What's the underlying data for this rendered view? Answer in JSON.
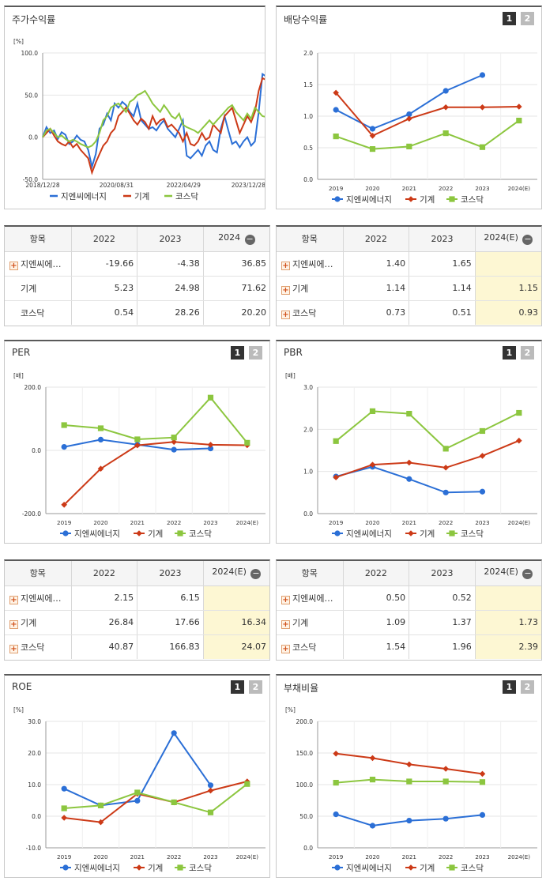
{
  "colors": {
    "gnc": "#2b6fd6",
    "machine": "#cc3a17",
    "kosdaq": "#8cc63f"
  },
  "legend": [
    "지엔씨에너지",
    "기계",
    "코스닥"
  ],
  "panels": {
    "stock": {
      "title": "주가수익률",
      "unit": "[%]"
    },
    "dividend": {
      "title": "배당수익률",
      "btn1": "1",
      "btn2": "2"
    },
    "per": {
      "title": "PER",
      "unit": "[배]",
      "btn1": "1",
      "btn2": "2"
    },
    "pbr": {
      "title": "PBR",
      "unit": "[배]",
      "btn1": "1",
      "btn2": "2"
    },
    "roe": {
      "title": "ROE",
      "unit": "[%]",
      "btn1": "1",
      "btn2": "2"
    },
    "debt": {
      "title": "부채비율",
      "unit": "[%]",
      "btn1": "1",
      "btn2": "2"
    }
  },
  "tables": {
    "stock": {
      "headers": [
        "항목",
        "2022",
        "2023",
        "2024"
      ],
      "rows": [
        {
          "label": "지엔씨에…",
          "plus": true,
          "values": [
            "-19.66",
            "-4.38",
            "36.85"
          ]
        },
        {
          "label": "기계",
          "plus": false,
          "values": [
            "5.23",
            "24.98",
            "71.62"
          ]
        },
        {
          "label": "코스닥",
          "plus": false,
          "values": [
            "0.54",
            "28.26",
            "20.20"
          ]
        }
      ]
    },
    "dividend": {
      "headers": [
        "항목",
        "2022",
        "2023",
        "2024(E)"
      ],
      "rows": [
        {
          "label": "지엔씨에…",
          "plus": true,
          "values": [
            "1.40",
            "1.65",
            ""
          ]
        },
        {
          "label": "기계",
          "plus": true,
          "values": [
            "1.14",
            "1.14",
            "1.15"
          ]
        },
        {
          "label": "코스닥",
          "plus": true,
          "values": [
            "0.73",
            "0.51",
            "0.93"
          ]
        }
      ]
    },
    "per": {
      "headers": [
        "항목",
        "2022",
        "2023",
        "2024(E)"
      ],
      "rows": [
        {
          "label": "지엔씨에…",
          "plus": true,
          "values": [
            "2.15",
            "6.15",
            ""
          ]
        },
        {
          "label": "기계",
          "plus": true,
          "values": [
            "26.84",
            "17.66",
            "16.34"
          ]
        },
        {
          "label": "코스닥",
          "plus": true,
          "values": [
            "40.87",
            "166.83",
            "24.07"
          ]
        }
      ]
    },
    "pbr": {
      "headers": [
        "항목",
        "2022",
        "2023",
        "2024(E)"
      ],
      "rows": [
        {
          "label": "지엔씨에…",
          "plus": true,
          "values": [
            "0.50",
            "0.52",
            ""
          ]
        },
        {
          "label": "기계",
          "plus": true,
          "values": [
            "1.09",
            "1.37",
            "1.73"
          ]
        },
        {
          "label": "코스닥",
          "plus": true,
          "values": [
            "1.54",
            "1.96",
            "2.39"
          ]
        }
      ]
    }
  },
  "chart_data": [
    {
      "id": "stock",
      "type": "line",
      "x_ticks": [
        "2018/12/28",
        "2020/08/31",
        "2022/04/29",
        "2023/12/28"
      ],
      "ylim": [
        -50,
        100
      ],
      "y_ticks": [
        "100.0",
        "50.0",
        "0.0",
        "-50.0"
      ],
      "series": [
        {
          "name": "지엔씨에너지",
          "values": [
            0,
            12,
            5,
            8,
            -2,
            6,
            3,
            -8,
            -5,
            2,
            -3,
            -5,
            -15,
            -35,
            -20,
            10,
            15,
            28,
            20,
            40,
            35,
            42,
            38,
            30,
            25,
            40,
            20,
            15,
            10,
            12,
            8,
            15,
            20,
            10,
            5,
            0,
            10,
            20,
            -22,
            -25,
            -20,
            -15,
            -22,
            -10,
            -5,
            -15,
            -18,
            10,
            25,
            8,
            -8,
            -5,
            -12,
            -5,
            0,
            -10,
            -5,
            30,
            75,
            72
          ]
        },
        {
          "name": "기계",
          "values": [
            0,
            5,
            10,
            2,
            -5,
            -8,
            -10,
            -5,
            -12,
            -8,
            -15,
            -20,
            -25,
            -42,
            -30,
            -20,
            -10,
            -5,
            5,
            10,
            25,
            30,
            35,
            28,
            20,
            15,
            22,
            18,
            10,
            25,
            15,
            20,
            22,
            12,
            15,
            10,
            5,
            -5,
            5,
            -8,
            -10,
            -5,
            5,
            -3,
            0,
            15,
            10,
            5,
            25,
            30,
            35,
            20,
            5,
            15,
            25,
            18,
            30,
            55,
            70,
            68
          ]
        },
        {
          "name": "코스닥",
          "values": [
            0,
            8,
            10,
            5,
            0,
            2,
            -2,
            -5,
            -3,
            -5,
            -8,
            -10,
            -12,
            -10,
            -5,
            5,
            20,
            25,
            35,
            38,
            40,
            35,
            30,
            42,
            45,
            50,
            52,
            55,
            48,
            40,
            35,
            30,
            38,
            32,
            25,
            22,
            28,
            15,
            12,
            10,
            8,
            5,
            10,
            15,
            20,
            15,
            20,
            25,
            30,
            35,
            38,
            30,
            25,
            20,
            28,
            22,
            35,
            30,
            25,
            24
          ]
        }
      ]
    },
    {
      "id": "dividend",
      "type": "line",
      "categories": [
        "2019",
        "2020",
        "2021",
        "2022",
        "2023",
        "2024(E)"
      ],
      "ylim": [
        0,
        2
      ],
      "y_ticks": [
        "2.0",
        "1.5",
        "1.0",
        "0.5",
        "0.0"
      ],
      "series": [
        {
          "name": "지엔씨에너지",
          "values": [
            1.1,
            0.8,
            1.03,
            1.4,
            1.65,
            null
          ]
        },
        {
          "name": "기계",
          "values": [
            1.37,
            0.69,
            0.96,
            1.14,
            1.14,
            1.15
          ]
        },
        {
          "name": "코스닥",
          "values": [
            0.68,
            0.48,
            0.52,
            0.73,
            0.51,
            0.93
          ]
        }
      ]
    },
    {
      "id": "per",
      "type": "line",
      "categories": [
        "2019",
        "2020",
        "2021",
        "2022",
        "2023",
        "2024(E)"
      ],
      "ylim": [
        -200,
        200
      ],
      "y_ticks": [
        "200.0",
        "0.0",
        "-200.0"
      ],
      "series": [
        {
          "name": "지엔씨에너지",
          "values": [
            11,
            34,
            18,
            2.15,
            6.15,
            null
          ]
        },
        {
          "name": "기계",
          "values": [
            -172,
            -58,
            16,
            26.84,
            17.66,
            16.34
          ]
        },
        {
          "name": "코스닥",
          "values": [
            80,
            70,
            35,
            40.87,
            166.83,
            24.07
          ]
        }
      ]
    },
    {
      "id": "pbr",
      "type": "line",
      "categories": [
        "2019",
        "2020",
        "2021",
        "2022",
        "2023",
        "2024(E)"
      ],
      "ylim": [
        0,
        3
      ],
      "y_ticks": [
        "3.0",
        "2.0",
        "1.0",
        "0.0"
      ],
      "series": [
        {
          "name": "지엔씨에너지",
          "values": [
            0.88,
            1.11,
            0.82,
            0.5,
            0.52,
            null
          ]
        },
        {
          "name": "기계",
          "values": [
            0.86,
            1.16,
            1.21,
            1.09,
            1.37,
            1.73
          ]
        },
        {
          "name": "코스닥",
          "values": [
            1.72,
            2.43,
            2.37,
            1.54,
            1.96,
            2.39
          ]
        }
      ]
    },
    {
      "id": "roe",
      "type": "line",
      "categories": [
        "2019",
        "2020",
        "2021",
        "2022",
        "2023",
        "2024(E)"
      ],
      "ylim": [
        -10,
        30
      ],
      "y_ticks": [
        "30.0",
        "20.0",
        "10.0",
        "0.0",
        "-10.0"
      ],
      "series": [
        {
          "name": "지엔씨에너지",
          "values": [
            8.7,
            3.4,
            4.9,
            26.3,
            9.8,
            null
          ]
        },
        {
          "name": "기계",
          "values": [
            -0.5,
            -1.9,
            7.1,
            4.4,
            8.1,
            11.0
          ]
        },
        {
          "name": "코스닥",
          "values": [
            2.5,
            3.4,
            7.5,
            4.4,
            1.2,
            10.2
          ]
        }
      ]
    },
    {
      "id": "debt",
      "type": "line",
      "categories": [
        "2019",
        "2020",
        "2021",
        "2022",
        "2023",
        "2024(E)"
      ],
      "ylim": [
        0,
        200
      ],
      "y_ticks": [
        "200.0",
        "150.0",
        "100.0",
        "50.0",
        "0.0"
      ],
      "series": [
        {
          "name": "지엔씨에너지",
          "values": [
            53,
            35,
            43,
            46,
            52,
            null
          ]
        },
        {
          "name": "기계",
          "values": [
            149,
            142,
            132,
            125,
            117,
            null
          ]
        },
        {
          "name": "코스닥",
          "values": [
            103,
            108,
            105,
            105,
            104,
            null
          ]
        }
      ]
    }
  ]
}
